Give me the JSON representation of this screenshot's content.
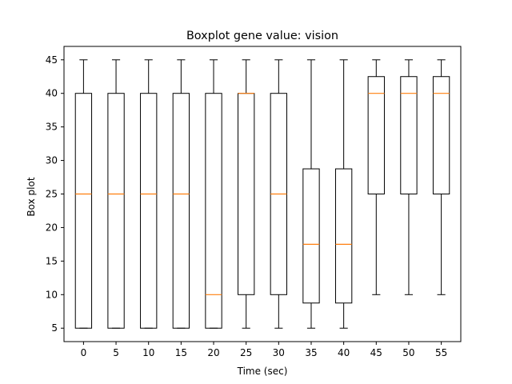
{
  "chart_data": {
    "type": "boxplot",
    "title": "Boxplot gene value: vision",
    "xlabel": "Time (sec)",
    "ylabel": "Box plot",
    "ylim": [
      3,
      47
    ],
    "yticks": [
      5,
      10,
      15,
      20,
      25,
      30,
      35,
      40,
      45
    ],
    "grid": false,
    "colors": {
      "box": "#000000",
      "median": "#ff7f0e",
      "background": "#ffffff"
    },
    "categories": [
      "0",
      "5",
      "10",
      "15",
      "20",
      "25",
      "30",
      "35",
      "40",
      "45",
      "50",
      "55"
    ],
    "boxes": [
      {
        "whisker_low": 5,
        "q1": 5,
        "median": 25,
        "q3": 40,
        "whisker_high": 45
      },
      {
        "whisker_low": 5,
        "q1": 5,
        "median": 25,
        "q3": 40,
        "whisker_high": 45
      },
      {
        "whisker_low": 5,
        "q1": 5,
        "median": 25,
        "q3": 40,
        "whisker_high": 45
      },
      {
        "whisker_low": 5,
        "q1": 5,
        "median": 25,
        "q3": 40,
        "whisker_high": 45
      },
      {
        "whisker_low": 5,
        "q1": 5,
        "median": 10,
        "q3": 40,
        "whisker_high": 45
      },
      {
        "whisker_low": 5,
        "q1": 10,
        "median": 40,
        "q3": 40,
        "whisker_high": 45
      },
      {
        "whisker_low": 5,
        "q1": 10,
        "median": 25,
        "q3": 40,
        "whisker_high": 45
      },
      {
        "whisker_low": 5,
        "q1": 8.75,
        "median": 17.5,
        "q3": 28.75,
        "whisker_high": 45
      },
      {
        "whisker_low": 5,
        "q1": 8.75,
        "median": 17.5,
        "q3": 28.75,
        "whisker_high": 45
      },
      {
        "whisker_low": 10,
        "q1": 25,
        "median": 40,
        "q3": 42.5,
        "whisker_high": 45
      },
      {
        "whisker_low": 10,
        "q1": 25,
        "median": 40,
        "q3": 42.5,
        "whisker_high": 45
      },
      {
        "whisker_low": 10,
        "q1": 25,
        "median": 40,
        "q3": 42.5,
        "whisker_high": 45
      }
    ]
  }
}
